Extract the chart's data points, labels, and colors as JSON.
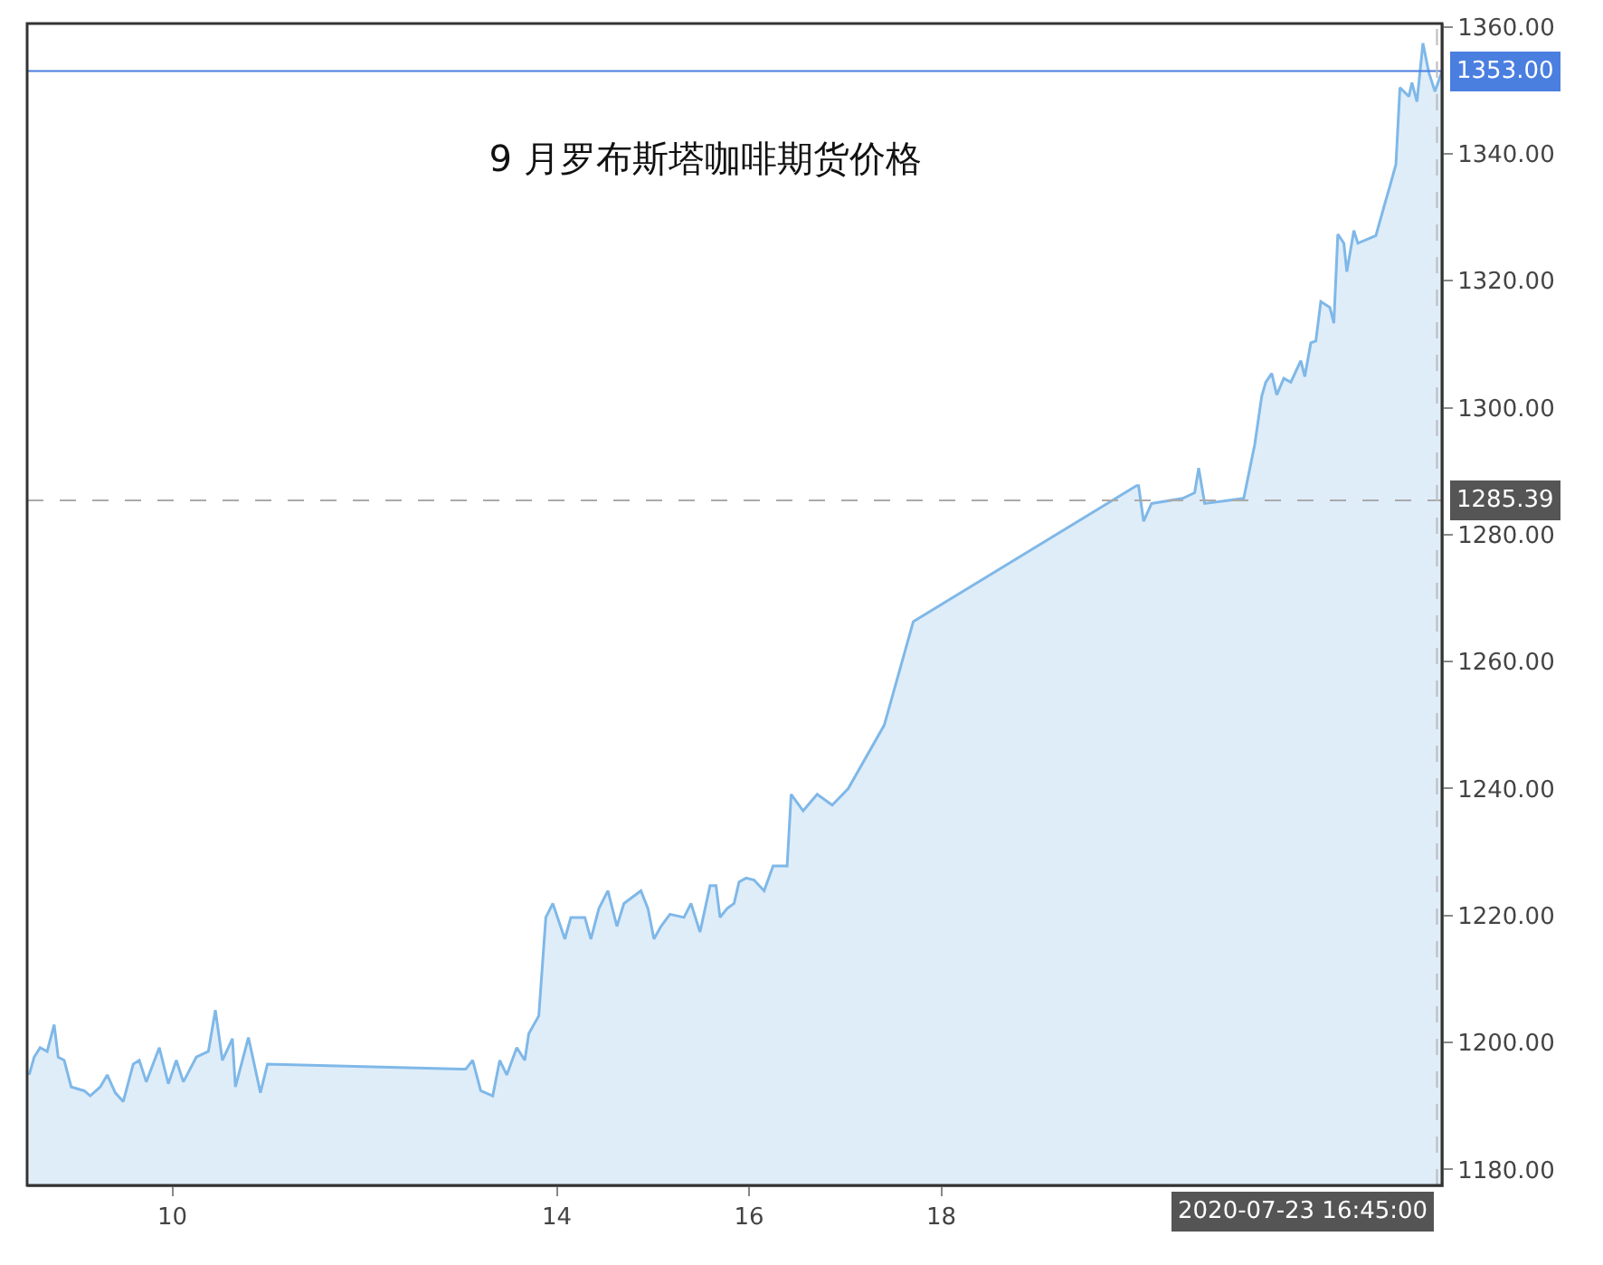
{
  "chart_data": {
    "type": "area",
    "title": "9 月罗布斯塔咖啡期货价格",
    "x": [
      "2020-07-08T12:15",
      "2020-07-08T13:30",
      "2020-07-08T15:00",
      "2020-07-08T16:45",
      "2020-07-08T18:30",
      "2020-07-08T19:30",
      "2020-07-08T21:00",
      "2020-07-08T22:45",
      "2020-07-09T02:00",
      "2020-07-09T03:30",
      "2020-07-09T06:00",
      "2020-07-09T07:45",
      "2020-07-09T09:45",
      "2020-07-09T11:45",
      "2020-07-09T14:15",
      "2020-07-09T15:45",
      "2020-07-09T17:30",
      "2020-07-09T20:45",
      "2020-07-09T23:00",
      "2020-07-10T01:00",
      "2020-07-10T02:45",
      "2020-07-10T06:00",
      "2020-07-10T09:00",
      "2020-07-10T10:45",
      "2020-07-10T12:30",
      "2020-07-10T15:00",
      "2020-07-10T15:45",
      "2020-07-10T19:00",
      "2020-07-10T22:00",
      "2020-07-10T23:45",
      "2020-07-13T01:15",
      "2020-07-13T03:00",
      "2020-07-13T05:00",
      "2020-07-13T08:00",
      "2020-07-13T09:45",
      "2020-07-13T11:30",
      "2020-07-13T14:00",
      "2020-07-13T16:00",
      "2020-07-13T17:00",
      "2020-07-13T19:30",
      "2020-07-13T21:15",
      "2020-07-13T23:00",
      "2020-07-14T02:00",
      "2020-07-14T03:30",
      "2020-07-14T07:00",
      "2020-07-14T08:30",
      "2020-07-14T10:30",
      "2020-07-14T12:45",
      "2020-07-14T15:00",
      "2020-07-14T16:45",
      "2020-07-14T21:00",
      "2020-07-14T22:45",
      "2020-07-15T00:15",
      "2020-07-15T02:00",
      "2020-07-15T04:15",
      "2020-07-15T07:45",
      "2020-07-15T09:30",
      "2020-07-15T11:45",
      "2020-07-15T14:15",
      "2020-07-15T15:45",
      "2020-07-15T16:45",
      "2020-07-15T18:30",
      "2020-07-15T20:15",
      "2020-07-15T21:30",
      "2020-07-15T23:15",
      "2020-07-16T01:15",
      "2020-07-16T03:45",
      "2020-07-16T06:00",
      "2020-07-16T09:30",
      "2020-07-16T10:30",
      "2020-07-16T13:30",
      "2020-07-16T17:00",
      "2020-07-16T20:45",
      "2020-07-17T00:45",
      "2020-07-17T09:45",
      "2020-07-17T17:00",
      "2020-07-20T00:45",
      "2020-07-20T01:15",
      "2020-07-20T02:30",
      "2020-07-20T04:30",
      "2020-07-20T12:15",
      "2020-07-20T15:15",
      "2020-07-20T16:15",
      "2020-07-20T17:45",
      "2020-07-21T03:30",
      "2020-07-21T06:15",
      "2020-07-21T08:00",
      "2020-07-21T09:00",
      "2020-07-21T10:30",
      "2020-07-21T11:45",
      "2020-07-21T13:30",
      "2020-07-21T15:15",
      "2020-07-21T17:45",
      "2020-07-21T18:45",
      "2020-07-21T20:15",
      "2020-07-21T21:30",
      "2020-07-21T22:45",
      "2020-07-22T01:00",
      "2020-07-22T02:00",
      "2020-07-22T03:00",
      "2020-07-22T04:30",
      "2020-07-22T05:15",
      "2020-07-22T07:00",
      "2020-07-22T08:00",
      "2020-07-22T12:30",
      "2020-07-22T14:30",
      "2020-07-22T16:00",
      "2020-07-22T17:30",
      "2020-07-22T18:30",
      "2020-07-22T20:45",
      "2020-07-22T21:30",
      "2020-07-22T22:45",
      "2020-07-23T00:15",
      "2020-07-23T01:45",
      "2020-07-23T03:15",
      "2020-07-23T05:00"
    ],
    "series": [
      {
        "color": "#7fb8e8",
        "values": [
          1194.9,
          1197.7,
          1199.2,
          1198.6,
          1202.8,
          1197.7,
          1197.2,
          1193.0,
          1192.4,
          1191.6,
          1193.0,
          1194.9,
          1192.1,
          1190.7,
          1196.6,
          1197.2,
          1193.8,
          1199.2,
          1193.5,
          1197.2,
          1193.8,
          1197.7,
          1198.6,
          1205.1,
          1197.2,
          1200.6,
          1193.0,
          1200.8,
          1192.1,
          1196.6,
          1195.8,
          1197.2,
          1192.4,
          1191.6,
          1197.2,
          1194.9,
          1199.2,
          1197.2,
          1201.4,
          1204.2,
          1219.7,
          1221.9,
          1216.3,
          1219.7,
          1219.7,
          1216.3,
          1221.1,
          1223.9,
          1218.3,
          1221.9,
          1223.9,
          1221.1,
          1216.3,
          1218.3,
          1220.2,
          1219.7,
          1221.9,
          1217.4,
          1224.7,
          1224.7,
          1219.7,
          1221.1,
          1221.9,
          1225.3,
          1225.9,
          1225.6,
          1223.9,
          1227.8,
          1227.8,
          1239.1,
          1236.5,
          1239.1,
          1237.4,
          1240.0,
          1250.0,
          1266.3,
          1287.7,
          1287.7,
          1282.1,
          1284.9,
          1285.7,
          1286.6,
          1290.5,
          1284.9,
          1285.7,
          1294.2,
          1301.8,
          1304.0,
          1305.4,
          1302.0,
          1304.6,
          1304.0,
          1307.4,
          1304.9,
          1310.2,
          1310.5,
          1316.7,
          1315.8,
          1313.3,
          1327.3,
          1325.9,
          1321.4,
          1327.9,
          1325.9,
          1327.1,
          1331.6,
          1334.9,
          1338.3,
          1350.4,
          1349.0,
          1351.2,
          1348.2,
          1357.4,
          1352.7,
          1349.8,
          1353.0
        ]
      }
    ],
    "xlim": [
      "2020-07-08T11:45",
      "2020-07-23T05:00"
    ],
    "xticks": [
      {
        "value": "2020-07-10",
        "label": "10"
      },
      {
        "value": "2020-07-14",
        "label": "14"
      },
      {
        "value": "2020-07-16",
        "label": "16"
      },
      {
        "value": "2020-07-18",
        "label": "18"
      }
    ],
    "annotations": [
      "2020-07-23 16:45:00"
    ],
    "ylim": [
      1177.5,
      1360.5
    ],
    "yticks": [
      {
        "value": 1180,
        "label": "1180.00"
      },
      {
        "value": 1200,
        "label": "1200.00"
      },
      {
        "value": 1220,
        "label": "1220.00"
      },
      {
        "value": 1240,
        "label": "1240.00"
      },
      {
        "value": 1260,
        "label": "1260.00"
      },
      {
        "value": 1280,
        "label": "1280.00"
      },
      {
        "value": 1300,
        "label": "1300.00"
      },
      {
        "value": 1320,
        "label": "1320.00"
      },
      {
        "value": 1340,
        "label": "1340.00"
      },
      {
        "value": 1360,
        "label": "1360.00"
      }
    ],
    "ref_lines": [
      {
        "axis": "y",
        "value": 1353.0,
        "label": "1353.00",
        "color": "#4a7fe0",
        "line_style": "solid"
      },
      {
        "axis": "y",
        "value": 1285.39,
        "label": "1285.39",
        "color": "#aaaaaa",
        "line_style": "dashed"
      },
      {
        "axis": "x",
        "value": "2020-07-23T03:45",
        "color": "#bbbbbb",
        "line_style": "dashed"
      }
    ]
  }
}
